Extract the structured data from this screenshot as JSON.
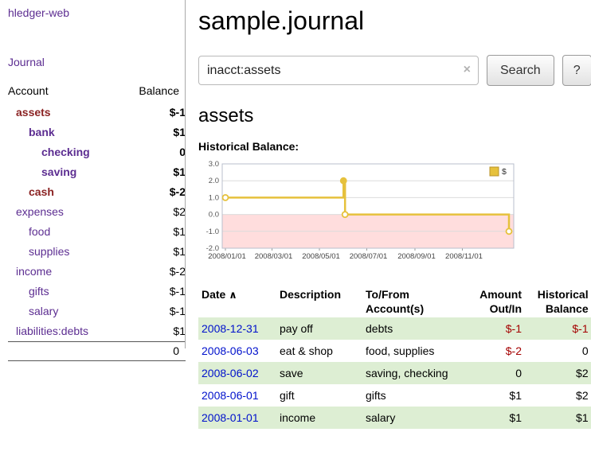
{
  "app": {
    "title": "hledger-web",
    "nav": "Journal"
  },
  "colors": {
    "link_purple": "#5c2d91",
    "account_maroon": "#8b2323",
    "negative_red": "#a40000",
    "soft_negative_red": "#b96a6a",
    "date_blue": "#0011cc",
    "row_green": "#ddeed3",
    "chart_line_gold": "#e6c13c",
    "chart_negative_bg": "#ffdddd"
  },
  "sidebar": {
    "columns": {
      "account": "Account",
      "balance": "Balance"
    },
    "accounts": [
      {
        "name": "assets",
        "indent": 1,
        "balance": "$-1",
        "emphasis": true,
        "negative": true,
        "name_color": "maroon"
      },
      {
        "name": "bank",
        "indent": 2,
        "balance": "$1",
        "emphasis": true,
        "negative": false,
        "name_color": "purple"
      },
      {
        "name": "checking",
        "indent": 3,
        "balance": "0",
        "emphasis": true,
        "negative": false,
        "name_color": "purple"
      },
      {
        "name": "saving",
        "indent": 3,
        "balance": "$1",
        "emphasis": true,
        "negative": false,
        "name_color": "purple"
      },
      {
        "name": "cash",
        "indent": 2,
        "balance": "$-2",
        "emphasis": true,
        "negative": true,
        "name_color": "maroon"
      },
      {
        "name": "expenses",
        "indent": 1,
        "balance": "$2",
        "emphasis": false,
        "negative": false,
        "name_color": "purple"
      },
      {
        "name": "food",
        "indent": 2,
        "balance": "$1",
        "emphasis": false,
        "negative": false,
        "name_color": "purple"
      },
      {
        "name": "supplies",
        "indent": 2,
        "balance": "$1",
        "emphasis": false,
        "negative": false,
        "name_color": "purple"
      },
      {
        "name": "income",
        "indent": 1,
        "balance": "$-2",
        "emphasis": false,
        "negative": true,
        "name_color": "purple"
      },
      {
        "name": "gifts",
        "indent": 2,
        "balance": "$-1",
        "emphasis": false,
        "negative": true,
        "name_color": "purple"
      },
      {
        "name": "salary",
        "indent": 2,
        "balance": "$-1",
        "emphasis": false,
        "negative": true,
        "name_color": "purple"
      },
      {
        "name": "liabilities:debts",
        "indent": 1,
        "balance": "$1",
        "emphasis": false,
        "negative": false,
        "name_color": "purple"
      }
    ],
    "total": "0"
  },
  "main": {
    "title": "sample.journal",
    "search": {
      "value": "inacct:assets",
      "clear_icon": "×",
      "button_label": "Search",
      "help_label": "?"
    },
    "account_heading": "assets",
    "chart_title": "Historical Balance:"
  },
  "chart_data": {
    "type": "line",
    "title": "Historical Balance",
    "series": [
      {
        "name": "$",
        "step": "after",
        "points": [
          {
            "x": "2008-01-01",
            "y": 1
          },
          {
            "x": "2008-06-01",
            "y": 2
          },
          {
            "x": "2008-06-03",
            "y": 0
          },
          {
            "x": "2008-12-31",
            "y": -1
          }
        ]
      }
    ],
    "x_range": [
      "2008-01-01",
      "2008-12-31"
    ],
    "x_ticks": [
      "2008/01/01",
      "2008/03/01",
      "2008/05/01",
      "2008/07/01",
      "2008/09/01",
      "2008/11/01"
    ],
    "y_ticks": [
      3.0,
      2.0,
      1.0,
      0.0,
      -1.0,
      -2.0
    ],
    "ylim": [
      -2,
      3
    ],
    "grid": true,
    "legend_position": "top-right",
    "line_color": "#e6c13c",
    "negative_region_color": "#ffdddd"
  },
  "register": {
    "headers": {
      "date": "Date",
      "sort_icon": "∧",
      "description": "Description",
      "account": "To/From Account(s)",
      "amount": "Amount Out/In",
      "balance": "Historical Balance"
    },
    "rows": [
      {
        "date": "2008-12-31",
        "description": "pay off",
        "account": "debts",
        "amount": "$-1",
        "amount_negative": true,
        "balance": "$-1",
        "balance_negative": true
      },
      {
        "date": "2008-06-03",
        "description": "eat & shop",
        "account": "food, supplies",
        "amount": "$-2",
        "amount_negative": true,
        "balance": "0",
        "balance_negative": false
      },
      {
        "date": "2008-06-02",
        "description": "save",
        "account": "saving, checking",
        "amount": "0",
        "amount_negative": false,
        "balance": "$2",
        "balance_negative": false
      },
      {
        "date": "2008-06-01",
        "description": "gift",
        "account": "gifts",
        "amount": "$1",
        "amount_negative": false,
        "balance": "$2",
        "balance_negative": false
      },
      {
        "date": "2008-01-01",
        "description": "income",
        "account": "salary",
        "amount": "$1",
        "amount_negative": false,
        "balance": "$1",
        "balance_negative": false
      }
    ]
  }
}
